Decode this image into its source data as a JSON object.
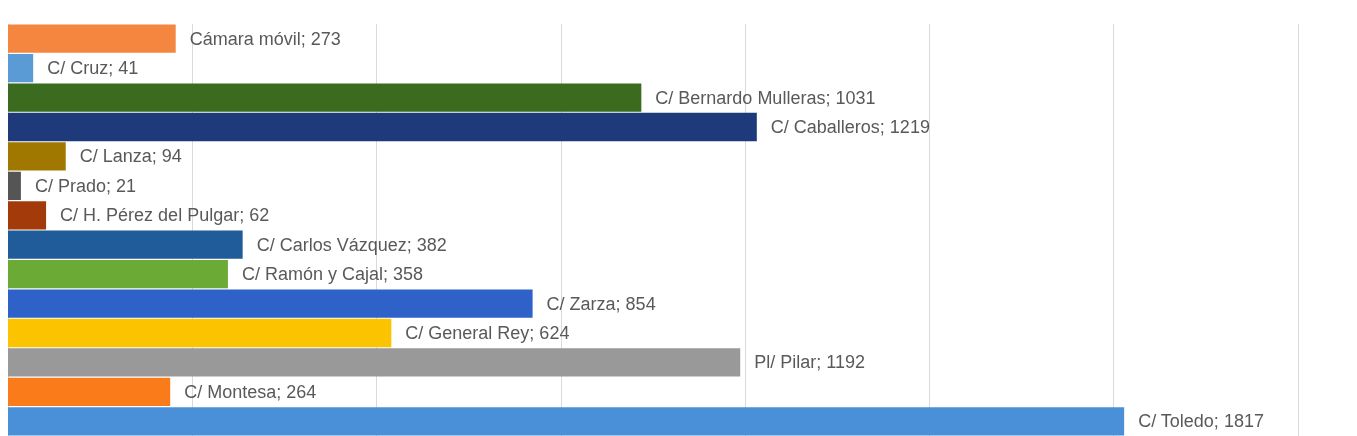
{
  "chart_data": {
    "type": "bar",
    "orientation": "horizontal",
    "categories": [
      null,
      null,
      null,
      null,
      null,
      null,
      null,
      null,
      null,
      null,
      null,
      null,
      null,
      null
    ],
    "values": [
      273,
      41,
      1031,
      1219,
      94,
      21,
      62,
      382,
      358,
      854,
      624,
      1192,
      264,
      1817
    ],
    "value_labels": [
      "Cámara móvil; 273",
      "C/ Cruz; 41",
      "C/ Bernardo Mulleras; 1031",
      "C/ Caballeros; 1219",
      "C/ Lanza; 94",
      "C/ Prado; 21",
      "C/ H. Pérez del Pulgar; 62",
      "C/ Carlos Vázquez; 382",
      "C/ Ramón y Cajal; 358",
      "C/ Zarza; 854",
      "C/ General Rey; 624",
      "Pl/ Pilar; 1192",
      "C/ Montesa; 264",
      "C/ Toledo; 1817"
    ],
    "colors": [
      "#f4863f",
      "#5b9bd5",
      "#3a6b1f",
      "#1f3a7a",
      "#a07800",
      "#555555",
      "#a33a0a",
      "#1f5c99",
      "#6aaa35",
      "#2e62c9",
      "#fcc300",
      "#999999",
      "#f97b1a",
      "#4a90d9"
    ],
    "grid": "x",
    "tick_labels": false
  }
}
